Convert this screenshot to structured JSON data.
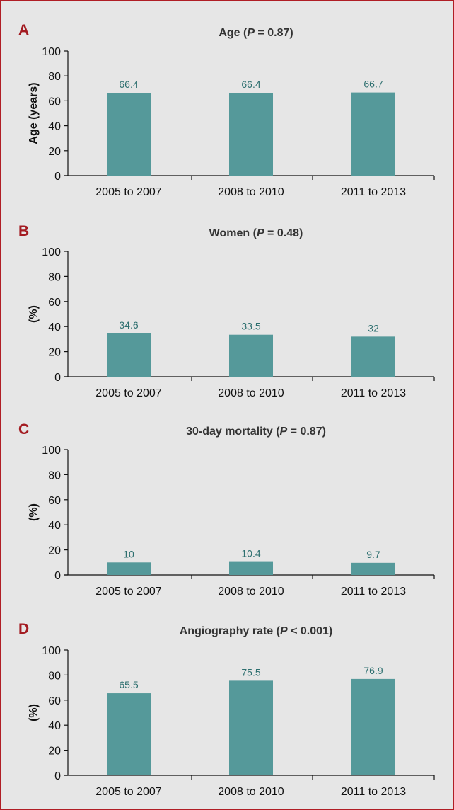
{
  "chart_data": [
    {
      "type": "bar",
      "panel": "A",
      "title_prefix": "Age (",
      "title_p": "P",
      "title_suffix": " = 0.87)",
      "ylabel": "Age (years)",
      "categories": [
        "2005 to 2007",
        "2008 to 2010",
        "2011 to 2013"
      ],
      "values": [
        66.4,
        66.4,
        66.7
      ],
      "value_labels": [
        "66.4",
        "66.4",
        "66.7"
      ],
      "yticks": [
        "0",
        "20",
        "40",
        "60",
        "80",
        "100"
      ],
      "ylim": [
        0,
        100
      ],
      "grid": false
    },
    {
      "type": "bar",
      "panel": "B",
      "title_prefix": "Women (",
      "title_p": "P",
      "title_suffix": " = 0.48)",
      "ylabel": "(%)",
      "categories": [
        "2005 to 2007",
        "2008 to 2010",
        "2011 to 2013"
      ],
      "values": [
        34.6,
        33.5,
        32
      ],
      "value_labels": [
        "34.6",
        "33.5",
        "32"
      ],
      "yticks": [
        "0",
        "20",
        "40",
        "60",
        "80",
        "100"
      ],
      "ylim": [
        0,
        100
      ],
      "grid": false
    },
    {
      "type": "bar",
      "panel": "C",
      "title_prefix": "30-day mortality (",
      "title_p": "P",
      "title_suffix": " = 0.87)",
      "ylabel": "(%)",
      "categories": [
        "2005 to 2007",
        "2008 to 2010",
        "2011 to 2013"
      ],
      "values": [
        10,
        10.4,
        9.7
      ],
      "value_labels": [
        "10",
        "10.4",
        "9.7"
      ],
      "yticks": [
        "0",
        "20",
        "40",
        "60",
        "80",
        "100"
      ],
      "ylim": [
        0,
        100
      ],
      "grid": false
    },
    {
      "type": "bar",
      "panel": "D",
      "title_prefix": "Angiography rate (",
      "title_p": "P",
      "title_suffix": " < 0.001)",
      "ylabel": "(%)",
      "categories": [
        "2005 to 2007",
        "2008 to 2010",
        "2011 to 2013"
      ],
      "values": [
        65.5,
        75.5,
        76.9
      ],
      "value_labels": [
        "65.5",
        "75.5",
        "76.9"
      ],
      "yticks": [
        "0",
        "20",
        "40",
        "60",
        "80",
        "100"
      ],
      "ylim": [
        0,
        100
      ],
      "grid": false
    }
  ],
  "colors": {
    "bar": "#55999a",
    "data_label": "#2d6f6f",
    "panel_letter": "#a31b21",
    "frame_border": "#b01e25",
    "background": "#e6e6e6"
  }
}
